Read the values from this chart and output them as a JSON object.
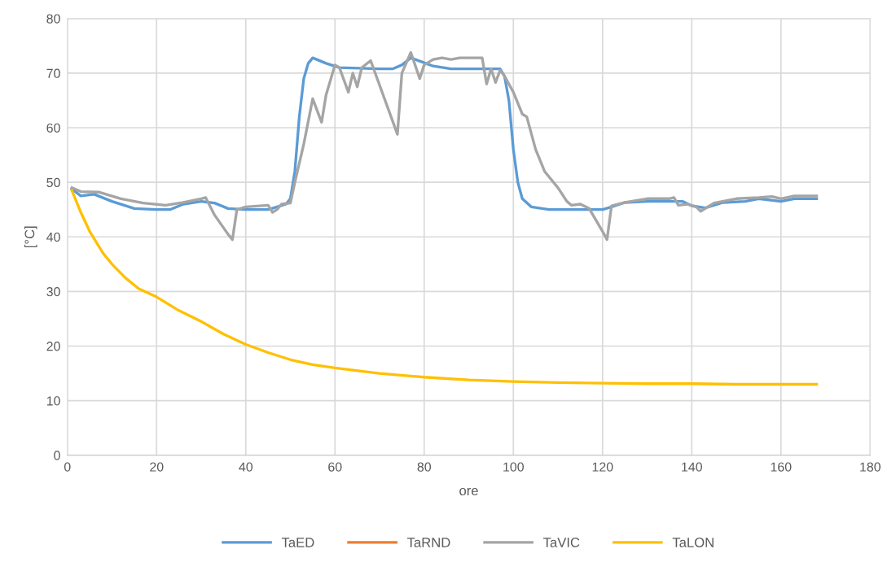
{
  "chart_data": {
    "type": "line",
    "xlabel": "ore",
    "ylabel": "[°C]",
    "xlim": [
      0,
      180
    ],
    "xticks": [
      0,
      20,
      40,
      60,
      80,
      100,
      120,
      140,
      160,
      180
    ],
    "ylim": [
      0,
      80
    ],
    "yticks": [
      0,
      10,
      20,
      30,
      40,
      50,
      60,
      70,
      80
    ],
    "grid": true,
    "legend": "bottom",
    "marker": "none",
    "line_style": "solid",
    "series": [
      {
        "name": "TaED",
        "color": "#5b9bd5",
        "x": [
          1,
          3,
          6,
          10,
          15,
          20,
          23,
          26,
          30,
          33,
          36,
          40,
          45,
          47,
          49,
          50,
          51,
          52,
          53,
          54,
          55,
          58,
          61,
          70,
          73,
          75,
          77,
          79,
          82,
          86,
          97,
          98,
          99,
          100,
          101,
          102,
          104,
          108,
          120,
          122,
          125,
          130,
          135,
          138,
          140,
          143,
          147,
          152,
          155,
          160,
          163,
          168
        ],
        "values": [
          48.8,
          47.5,
          47.8,
          46.5,
          45.2,
          45,
          45,
          46,
          46.5,
          46.2,
          45.2,
          45,
          45,
          45.5,
          46,
          47,
          52,
          62,
          69,
          71.8,
          72.8,
          71.8,
          71,
          70.8,
          70.8,
          71.5,
          72.8,
          72.2,
          71.3,
          70.8,
          70.8,
          69.5,
          65,
          56,
          50,
          47,
          45.5,
          45,
          45,
          45.5,
          46.3,
          46.5,
          46.5,
          46.5,
          45.7,
          45.3,
          46.3,
          46.5,
          47,
          46.5,
          47,
          47
        ]
      },
      {
        "name": "TaRND",
        "color": "#ed7d31"
      },
      {
        "name": "TaVIC",
        "color": "#a5a5a5",
        "x": [
          1,
          3,
          7,
          12,
          17,
          22,
          26,
          30,
          31,
          33,
          36,
          37,
          38,
          40,
          45,
          46,
          47,
          48,
          50,
          51,
          53,
          55,
          57,
          58,
          60,
          61,
          63,
          64,
          65,
          66,
          68,
          74,
          75,
          77,
          79,
          80,
          82,
          84,
          86,
          88,
          92,
          93,
          94,
          95,
          96,
          97,
          98,
          100,
          102,
          103,
          105,
          107,
          110,
          112,
          113,
          115,
          117,
          120,
          121,
          122,
          125,
          130,
          135,
          136,
          137,
          139,
          141,
          142,
          145,
          150,
          155,
          158,
          160,
          163,
          168
        ],
        "values": [
          49,
          48.3,
          48.2,
          47,
          46.2,
          45.8,
          46.3,
          47,
          47.2,
          44,
          40.5,
          39.5,
          45,
          45.5,
          45.8,
          44.5,
          45,
          46,
          46.2,
          50,
          57,
          65.3,
          61,
          66,
          71.5,
          71,
          66.5,
          70,
          67.5,
          71,
          72.3,
          58.8,
          70,
          73.8,
          69,
          71.5,
          72.5,
          72.8,
          72.5,
          72.8,
          72.8,
          72.8,
          68,
          70.8,
          68.3,
          70.5,
          69.5,
          66.5,
          62.5,
          62,
          56,
          52,
          49,
          46.5,
          45.8,
          46,
          45.2,
          41,
          39.5,
          45.7,
          46.3,
          47,
          47,
          47.2,
          45.8,
          46,
          45.5,
          44.7,
          46.2,
          47,
          47.2,
          47.4,
          47,
          47.5,
          47.5
        ]
      },
      {
        "name": "TaLON",
        "color": "#ffc000",
        "x": [
          1,
          3,
          5,
          8,
          10,
          13,
          16,
          20,
          25,
          30,
          35,
          40,
          45,
          50,
          55,
          60,
          70,
          80,
          90,
          100,
          110,
          120,
          130,
          140,
          150,
          168
        ],
        "values": [
          48.5,
          44.5,
          41,
          37,
          35,
          32.5,
          30.5,
          29,
          26.5,
          24.5,
          22.2,
          20.3,
          18.8,
          17.5,
          16.6,
          16,
          15,
          14.3,
          13.8,
          13.5,
          13.3,
          13.2,
          13.1,
          13.1,
          13,
          13
        ]
      }
    ]
  }
}
